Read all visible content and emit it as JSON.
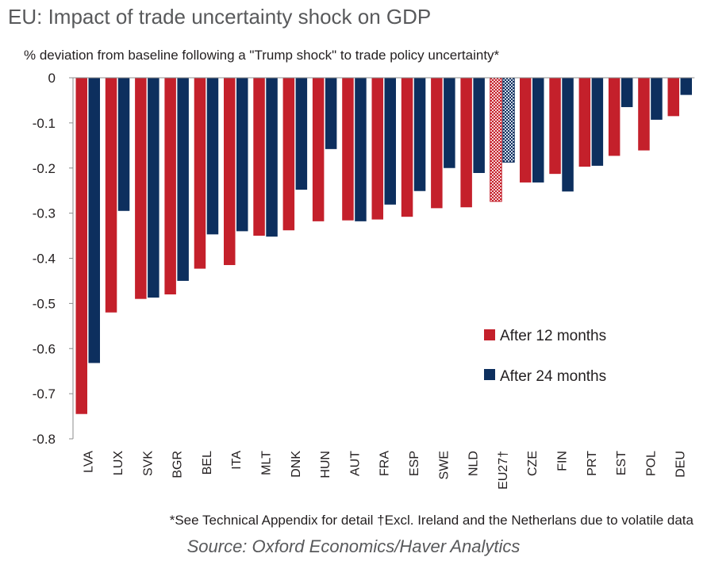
{
  "title": "EU: Impact of trade uncertainty shock on GDP",
  "subtitle": "% deviation from baseline following a \"Trump shock\" to trade policy uncertainty*",
  "footnote": "*See Technical Appendix for detail †Excl. Ireland and the Netherlans due to volatile data",
  "source": "Source: Oxford Economics/Haver Analytics",
  "colors": {
    "series12": "#c4202b",
    "series24": "#0d2f5e",
    "axis": "#8c8c8c"
  },
  "chart_data": {
    "type": "bar",
    "title": "EU: Impact of trade uncertainty shock on GDP",
    "subtitle": "% deviation from baseline following a \"Trump shock\" to trade policy uncertainty*",
    "xlabel": "",
    "ylabel": "",
    "ylim": [
      -0.8,
      0
    ],
    "yticks": [
      "0",
      "-0.1",
      "-0.2",
      "-0.3",
      "-0.4",
      "-0.5",
      "-0.6",
      "-0.7",
      "-0.8"
    ],
    "grid": false,
    "legend": "right",
    "categories": [
      "LVA",
      "LUX",
      "SVK",
      "BGR",
      "BEL",
      "ITA",
      "MLT",
      "DNK",
      "HUN",
      "AUT",
      "FRA",
      "ESP",
      "SWE",
      "NLD",
      "EU27†",
      "CZE",
      "FIN",
      "PRT",
      "EST",
      "POL",
      "DEU"
    ],
    "highlight_category": "EU27†",
    "series": [
      {
        "name": "After 12 months",
        "values": [
          -0.745,
          -0.52,
          -0.49,
          -0.48,
          -0.423,
          -0.415,
          -0.35,
          -0.338,
          -0.318,
          -0.316,
          -0.314,
          -0.308,
          -0.289,
          -0.287,
          -0.274,
          -0.232,
          -0.213,
          -0.197,
          -0.173,
          -0.161,
          -0.085
        ]
      },
      {
        "name": "After 24 months",
        "values": [
          -0.632,
          -0.295,
          -0.487,
          -0.45,
          -0.347,
          -0.34,
          -0.352,
          -0.248,
          -0.158,
          -0.318,
          -0.281,
          -0.251,
          -0.2,
          -0.211,
          -0.187,
          -0.232,
          -0.252,
          -0.195,
          -0.065,
          -0.093,
          -0.038
        ]
      }
    ]
  }
}
